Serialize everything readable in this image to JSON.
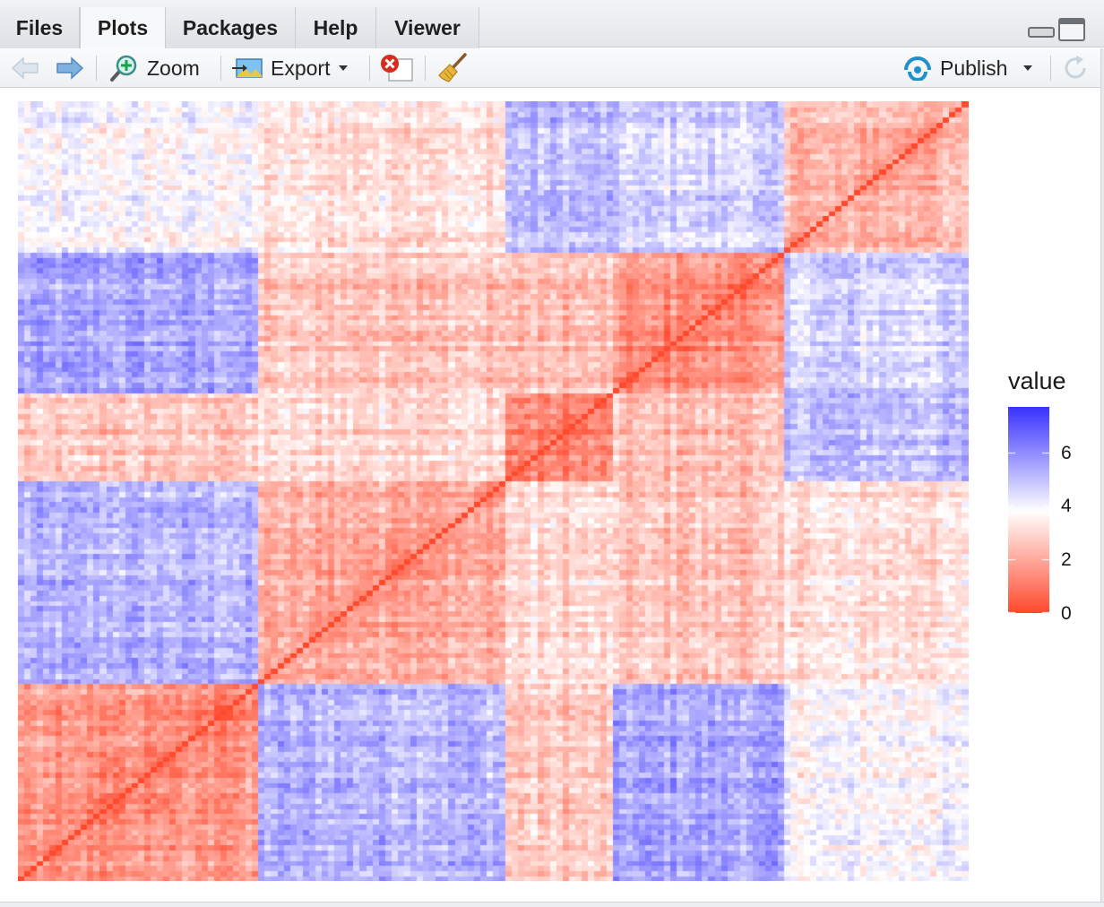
{
  "tabs": [
    {
      "label": "Files",
      "active": false
    },
    {
      "label": "Plots",
      "active": true
    },
    {
      "label": "Packages",
      "active": false
    },
    {
      "label": "Help",
      "active": false
    },
    {
      "label": "Viewer",
      "active": false
    }
  ],
  "toolbar": {
    "zoom_label": "Zoom",
    "export_label": "Export",
    "publish_label": "Publish",
    "icons": [
      "back-arrow-icon",
      "forward-arrow-icon",
      "zoom-icon",
      "export-icon",
      "remove-plot-icon",
      "broom-icon",
      "publish-icon",
      "refresh-icon"
    ]
  },
  "chart_data": {
    "type": "heatmap",
    "title": "",
    "xlabel": "",
    "ylabel": "",
    "legend": {
      "title": "value",
      "ticks": [
        "6",
        "4",
        "2",
        "0"
      ],
      "range": [
        0,
        7.7
      ],
      "colors": {
        "low": "#ff4a2e",
        "mid": "#ffffff",
        "high": "#3a33ff"
      },
      "midpoint": 3.8
    },
    "n_cells": 150,
    "diagonal_value": 0,
    "cluster_boundaries": [
      0,
      38,
      77,
      94,
      121,
      150
    ],
    "block_means": [
      [
        1.6,
        5.2,
        2.6,
        5.4,
        3.8
      ],
      [
        5.2,
        2.2,
        3.0,
        2.6,
        3.2
      ],
      [
        2.6,
        3.0,
        1.4,
        2.4,
        5.0
      ],
      [
        5.4,
        2.6,
        2.4,
        1.6,
        4.6
      ],
      [
        3.8,
        3.2,
        5.0,
        4.6,
        2.4
      ]
    ]
  }
}
